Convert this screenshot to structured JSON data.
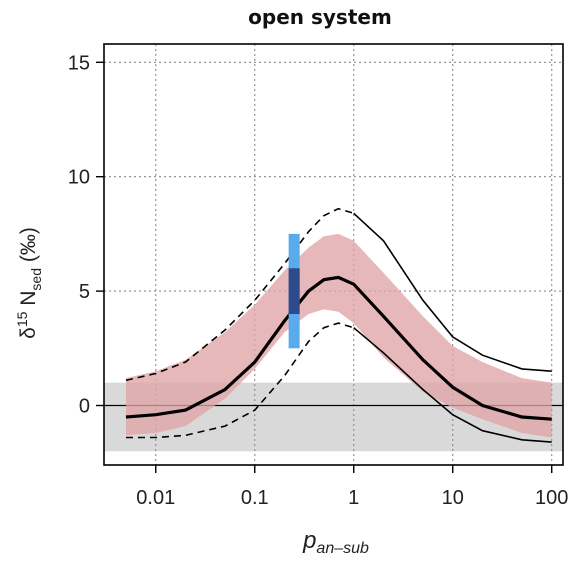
{
  "chart_data": {
    "type": "line",
    "title": "open system",
    "xlabel": {
      "base": "p",
      "subscript": "an–sub"
    },
    "ylabel": {
      "prefix": "δ",
      "superscript": "15",
      "base": " N",
      "subscript": "sed",
      "suffix": " (‰)"
    },
    "xscale": "log",
    "xlim": [
      0.003,
      130
    ],
    "ylim": [
      -2.6,
      15.8
    ],
    "xticks": [
      0.01,
      0.1,
      1,
      10,
      100
    ],
    "xtick_labels": [
      "0.01",
      "0.1",
      "1",
      "10",
      "100"
    ],
    "yticks": [
      0,
      5,
      10,
      15
    ],
    "ytick_labels": [
      "0",
      "5",
      "10",
      "15"
    ],
    "grid": true,
    "reference_line_y": 0,
    "gray_band": {
      "y_range": [
        -2,
        1
      ],
      "color": "#d9d9d9"
    },
    "x": [
      0.005,
      0.01,
      0.02,
      0.05,
      0.1,
      0.2,
      0.35,
      0.5,
      0.7,
      1,
      2,
      5,
      10,
      20,
      50,
      100
    ],
    "series": [
      {
        "name": "",
        "role": "band",
        "color": "#e0a4a6",
        "lower": [
          -1.3,
          -1.2,
          -0.9,
          0.3,
          1.6,
          3.2,
          4.0,
          4.2,
          4.1,
          3.6,
          2.1,
          0.6,
          -0.1,
          -0.6,
          -1.2,
          -1.4
        ],
        "upper": [
          1.2,
          1.5,
          2.0,
          3.2,
          4.4,
          5.9,
          6.9,
          7.4,
          7.5,
          7.2,
          5.8,
          3.9,
          2.6,
          1.9,
          1.2,
          1.0
        ]
      },
      {
        "name": "",
        "role": "central",
        "style": "solid-thick",
        "color": "#000000",
        "values": [
          -0.5,
          -0.4,
          -0.2,
          0.7,
          1.9,
          3.7,
          5.0,
          5.5,
          5.6,
          5.3,
          3.9,
          2.0,
          0.8,
          0.0,
          -0.5,
          -0.6
        ]
      },
      {
        "name": "",
        "role": "upper_bound",
        "style": "dashed-then-solid",
        "color": "#000000",
        "values": [
          1.1,
          1.4,
          1.9,
          3.3,
          4.6,
          6.2,
          7.6,
          8.3,
          8.6,
          8.4,
          7.2,
          4.6,
          3.0,
          2.2,
          1.6,
          1.5
        ]
      },
      {
        "name": "",
        "role": "lower_bound",
        "style": "dashed-then-solid",
        "color": "#000000",
        "values": [
          -1.4,
          -1.4,
          -1.3,
          -0.9,
          -0.2,
          1.3,
          2.8,
          3.4,
          3.6,
          3.4,
          2.3,
          0.7,
          -0.4,
          -1.1,
          -1.5,
          -1.6
        ]
      }
    ],
    "observation_bar": {
      "x": 0.25,
      "outer": {
        "y_range": [
          2.5,
          7.5
        ],
        "color": "#5aabeb"
      },
      "inner": {
        "y_range": [
          4.0,
          6.0
        ],
        "color": "#2f4a8a"
      }
    }
  }
}
